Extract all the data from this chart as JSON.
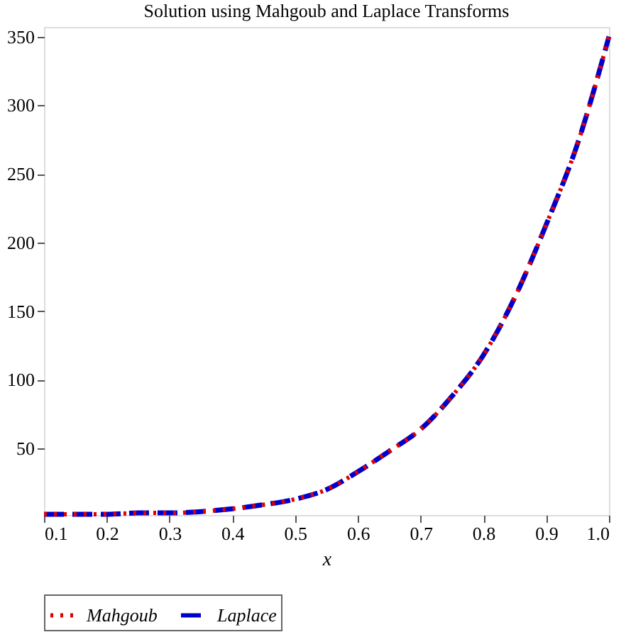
{
  "chart_data": {
    "type": "line",
    "title": "Solution using Mahgoub and Laplace Transforms",
    "xlabel": "x",
    "x": [
      0.1,
      0.15,
      0.2,
      0.25,
      0.3,
      0.35,
      0.4,
      0.45,
      0.5,
      0.55,
      0.6,
      0.65,
      0.7,
      0.75,
      0.8,
      0.85,
      0.9,
      0.95,
      1.0
    ],
    "series": [
      {
        "name": "Mahgoub",
        "color": "#e00000",
        "line_style": "dotted",
        "values": [
          2,
          2,
          2,
          3,
          3,
          4,
          6,
          9,
          13,
          20,
          33,
          48,
          64,
          88,
          118,
          160,
          213,
          272,
          350
        ]
      },
      {
        "name": "Laplace",
        "color": "#0000cc",
        "line_style": "dashed",
        "values": [
          2,
          2,
          2,
          3,
          3,
          4,
          6,
          9,
          13,
          20,
          33,
          48,
          64,
          88,
          118,
          160,
          213,
          272,
          350
        ]
      }
    ],
    "xlim": [
      0.1,
      1.0
    ],
    "xticks": [
      0.1,
      0.2,
      0.3,
      0.4,
      0.5,
      0.6,
      0.7,
      0.8,
      0.9,
      {
        "value": 1.0,
        "label": "1.0"
      }
    ],
    "ylim": [
      1.5,
      357
    ],
    "yticks": [
      50,
      100,
      150,
      200,
      250,
      300,
      350
    ],
    "grid": false,
    "legend": "bottom",
    "marker": "none"
  }
}
